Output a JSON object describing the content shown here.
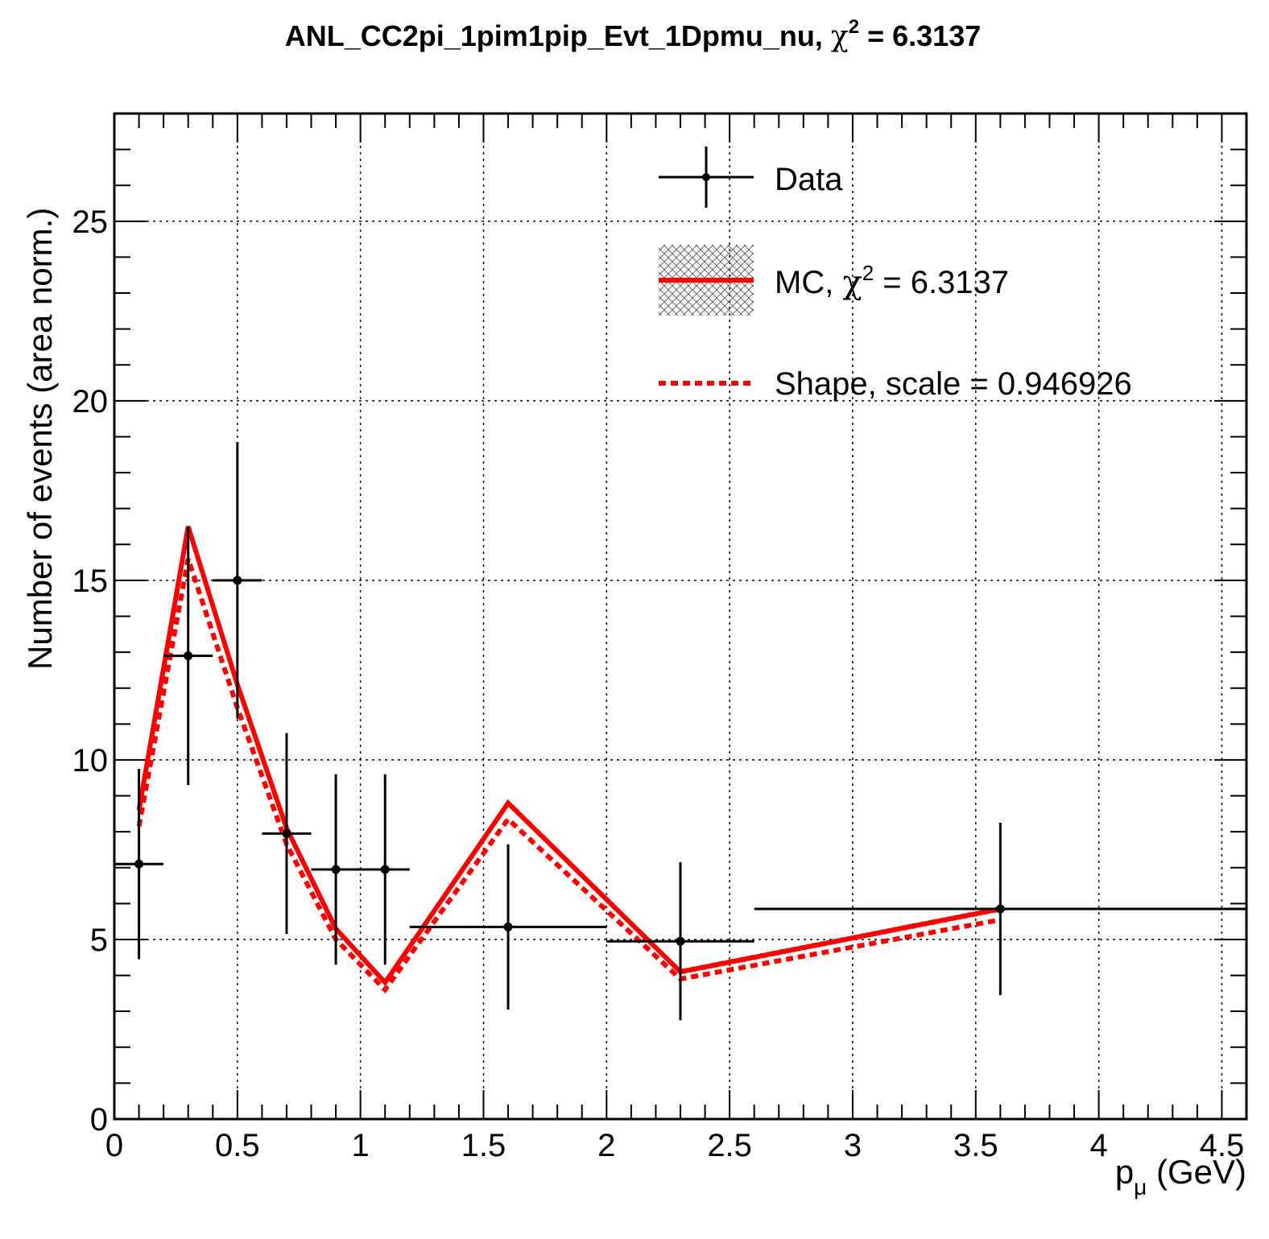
{
  "chart_data": {
    "type": "line",
    "title": "ANL_CC2pi_1pim1pip_Evt_1Dpmu_nu, χ² = 6.3137",
    "title_parts": {
      "main": "ANL_CC2pi_1pim1pip_Evt_1Dpmu_nu, ",
      "chi": "χ",
      "sup": "2",
      "rest": " = 6.3137"
    },
    "xlabel": "p_μ (GeV)",
    "xlabel_parts": {
      "p": "p",
      "sub": "μ",
      "unit": " (GeV)"
    },
    "ylabel": "Number of events (area norm.)",
    "xlim": [
      0,
      4.6
    ],
    "ylim": [
      0,
      28
    ],
    "x_ticks": [
      {
        "value": 0,
        "label": "0"
      },
      {
        "value": 0.5,
        "label": "0.5"
      },
      {
        "value": 1,
        "label": "1"
      },
      {
        "value": 1.5,
        "label": "1.5"
      },
      {
        "value": 2,
        "label": "2"
      },
      {
        "value": 2.5,
        "label": "2.5"
      },
      {
        "value": 3,
        "label": "3"
      },
      {
        "value": 3.5,
        "label": "3.5"
      },
      {
        "value": 4,
        "label": "4"
      },
      {
        "value": 4.5,
        "label": "4.5"
      }
    ],
    "y_ticks": [
      {
        "value": 0,
        "label": "0"
      },
      {
        "value": 5,
        "label": "5"
      },
      {
        "value": 10,
        "label": "10"
      },
      {
        "value": 15,
        "label": "15"
      },
      {
        "value": 20,
        "label": "20"
      },
      {
        "value": 25,
        "label": "25"
      }
    ],
    "grid": true,
    "legend_position": "top-right",
    "series": [
      {
        "name": "Data",
        "kind": "errorbar",
        "color": "#000000",
        "points": [
          {
            "x": 0.1,
            "xlo": 0.0,
            "xhi": 0.2,
            "y": 7.1,
            "yerr": 2.65
          },
          {
            "x": 0.3,
            "xlo": 0.2,
            "xhi": 0.4,
            "y": 12.9,
            "yerr": 3.6
          },
          {
            "x": 0.5,
            "xlo": 0.4,
            "xhi": 0.6,
            "y": 15.0,
            "yerr": 3.85
          },
          {
            "x": 0.7,
            "xlo": 0.6,
            "xhi": 0.8,
            "y": 7.95,
            "yerr": 2.8
          },
          {
            "x": 0.9,
            "xlo": 0.8,
            "xhi": 1.0,
            "y": 6.95,
            "yerr": 2.65
          },
          {
            "x": 1.1,
            "xlo": 1.0,
            "xhi": 1.2,
            "y": 6.95,
            "yerr": 2.65
          },
          {
            "x": 1.6,
            "xlo": 1.2,
            "xhi": 2.0,
            "y": 5.35,
            "yerr": 2.3
          },
          {
            "x": 2.3,
            "xlo": 2.0,
            "xhi": 2.6,
            "y": 4.95,
            "yerr": 2.2
          },
          {
            "x": 3.6,
            "xlo": 2.6,
            "xhi": 4.6,
            "y": 5.85,
            "yerr": 2.4
          }
        ]
      },
      {
        "name": "MC, χ² = 6.3137",
        "legend_parts": {
          "main": "MC, ",
          "chi": "χ",
          "sup": "2",
          "rest": " = 6.3137"
        },
        "kind": "line",
        "style": "solid",
        "color": "#ff0000",
        "x": [
          0.1,
          0.3,
          0.5,
          0.7,
          0.9,
          1.1,
          1.6,
          2.3,
          3.6
        ],
        "values": [
          8.6,
          16.5,
          12.1,
          8.1,
          5.3,
          3.8,
          8.8,
          4.1,
          5.85
        ]
      },
      {
        "name": "Shape, scale = 0.946926",
        "kind": "line",
        "style": "dotted",
        "color": "#ff0000",
        "x": [
          0.1,
          0.3,
          0.5,
          0.7,
          0.9,
          1.1,
          1.6,
          2.3,
          3.6
        ],
        "values": [
          8.15,
          15.6,
          11.45,
          7.65,
          5.0,
          3.6,
          8.35,
          3.9,
          5.55
        ]
      }
    ]
  }
}
